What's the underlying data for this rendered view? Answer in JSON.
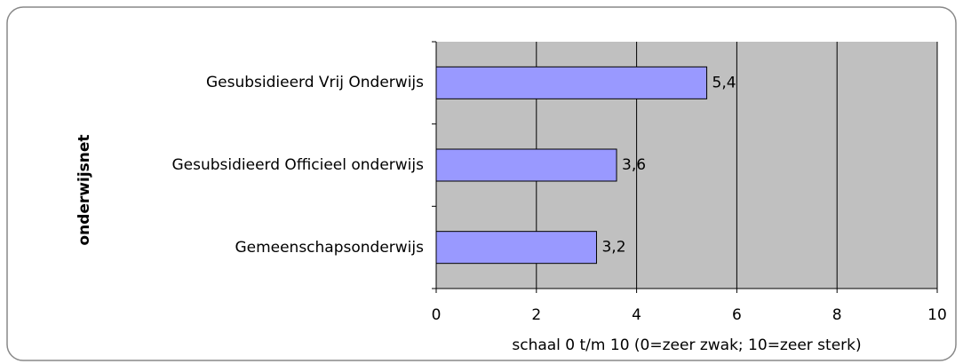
{
  "chart_data": {
    "type": "bar",
    "orientation": "horizontal",
    "categories": [
      "Gesubsidieerd Vrij Onderwijs",
      "Gesubsidieerd Officieel onderwijs",
      "Gemeenschapsonderwijs"
    ],
    "values": [
      5.4,
      3.6,
      3.2
    ],
    "value_labels": [
      "5,4",
      "3,6",
      "3,2"
    ],
    "color": "#9999ff",
    "xlim": [
      0,
      10
    ],
    "xticks": [
      0,
      2,
      4,
      6,
      8,
      10
    ],
    "grid": true,
    "xlabel": "schaal 0 t/m 10 (0=zeer zwak; 10=zeer sterk)",
    "ylabel": "onderwijsnet"
  }
}
